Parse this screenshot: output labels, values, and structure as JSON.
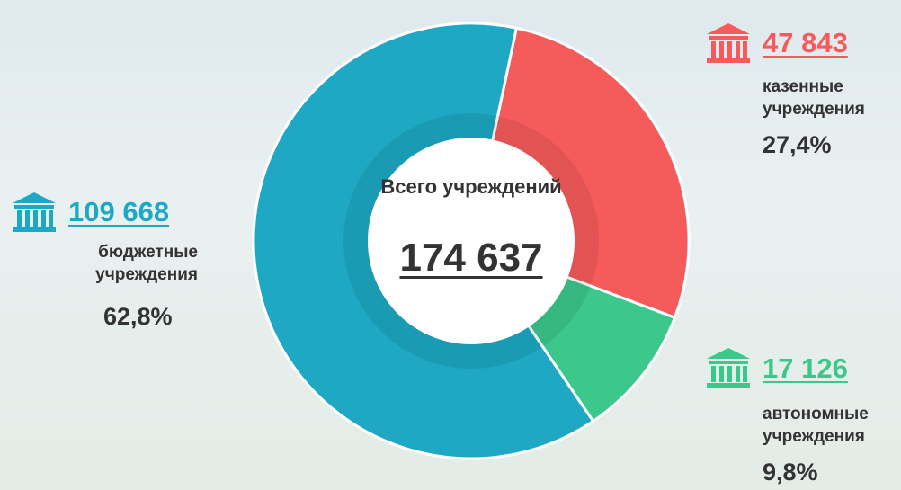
{
  "chart_data": {
    "type": "donut",
    "title": "Всего учреждений",
    "total": {
      "value": 174637,
      "label": "174 637"
    },
    "categories": [
      "бюджетные учреждения",
      "казенные учреждения",
      "автономные учреждения"
    ],
    "values": [
      109668,
      47843,
      17126
    ],
    "value_labels": [
      "109 668",
      "47 843",
      "17 126"
    ],
    "shares": [
      {
        "value": 62.8,
        "label": "62,8%"
      },
      {
        "value": 27.4,
        "label": "27,4%"
      },
      {
        "value": 9.8,
        "label": "9,8%"
      }
    ],
    "colors": [
      "#1ea8c3",
      "#f65b5b",
      "#3cc78b"
    ]
  }
}
